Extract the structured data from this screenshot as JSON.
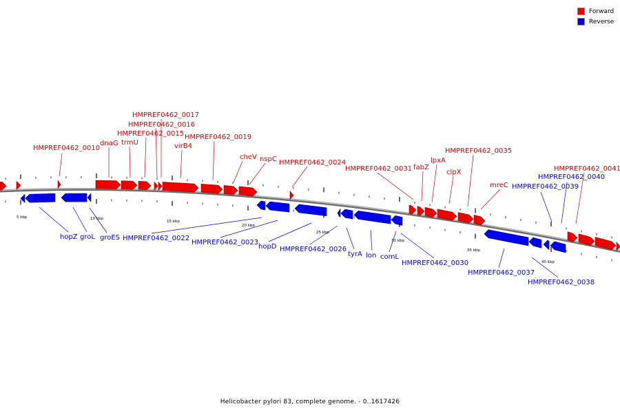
{
  "legend": {
    "forward": "Forward",
    "reverse": "Reverse"
  },
  "colors": {
    "forward": "#ee0000",
    "reverse": "#0000ee",
    "backbone": "#7a7a7a"
  },
  "footer": "Helicobacter pylori 83, complete genome. - 0..1617426",
  "ticks": [
    "5 kbp",
    "10 kbp",
    "15 kbp",
    "20 kbp",
    "25 kbp",
    "30 kbp",
    "35 kbp",
    "40 kbp"
  ],
  "forward_labels": [
    "HMPREF0462_0010",
    "dnaG",
    "trmU",
    "HMPREF0462_0015",
    "HMPREF0462_0016",
    "HMPREF0462_0017",
    "virB4",
    "HMPREF0462_0019",
    "cheV",
    "nspC",
    "HMPREF0462_0024",
    "HMPREF0462_0031",
    "fabZ",
    "lpxA",
    "clpX",
    "HMPREF0462_0035",
    "mreC",
    "HMPREF0462_0041"
  ],
  "reverse_labels": [
    "hopZ",
    "groL",
    "groES",
    "HMPREF0462_0022",
    "HMPREF0462_0023",
    "hopD",
    "HMPREF0462_0026",
    "tyrA",
    "lon",
    "comL",
    "HMPREF0462_0030",
    "HMPREF0462_0037",
    "HMPREF0462_0038",
    "HMPREF0462_0039",
    "HMPREF0462_0040"
  ]
}
